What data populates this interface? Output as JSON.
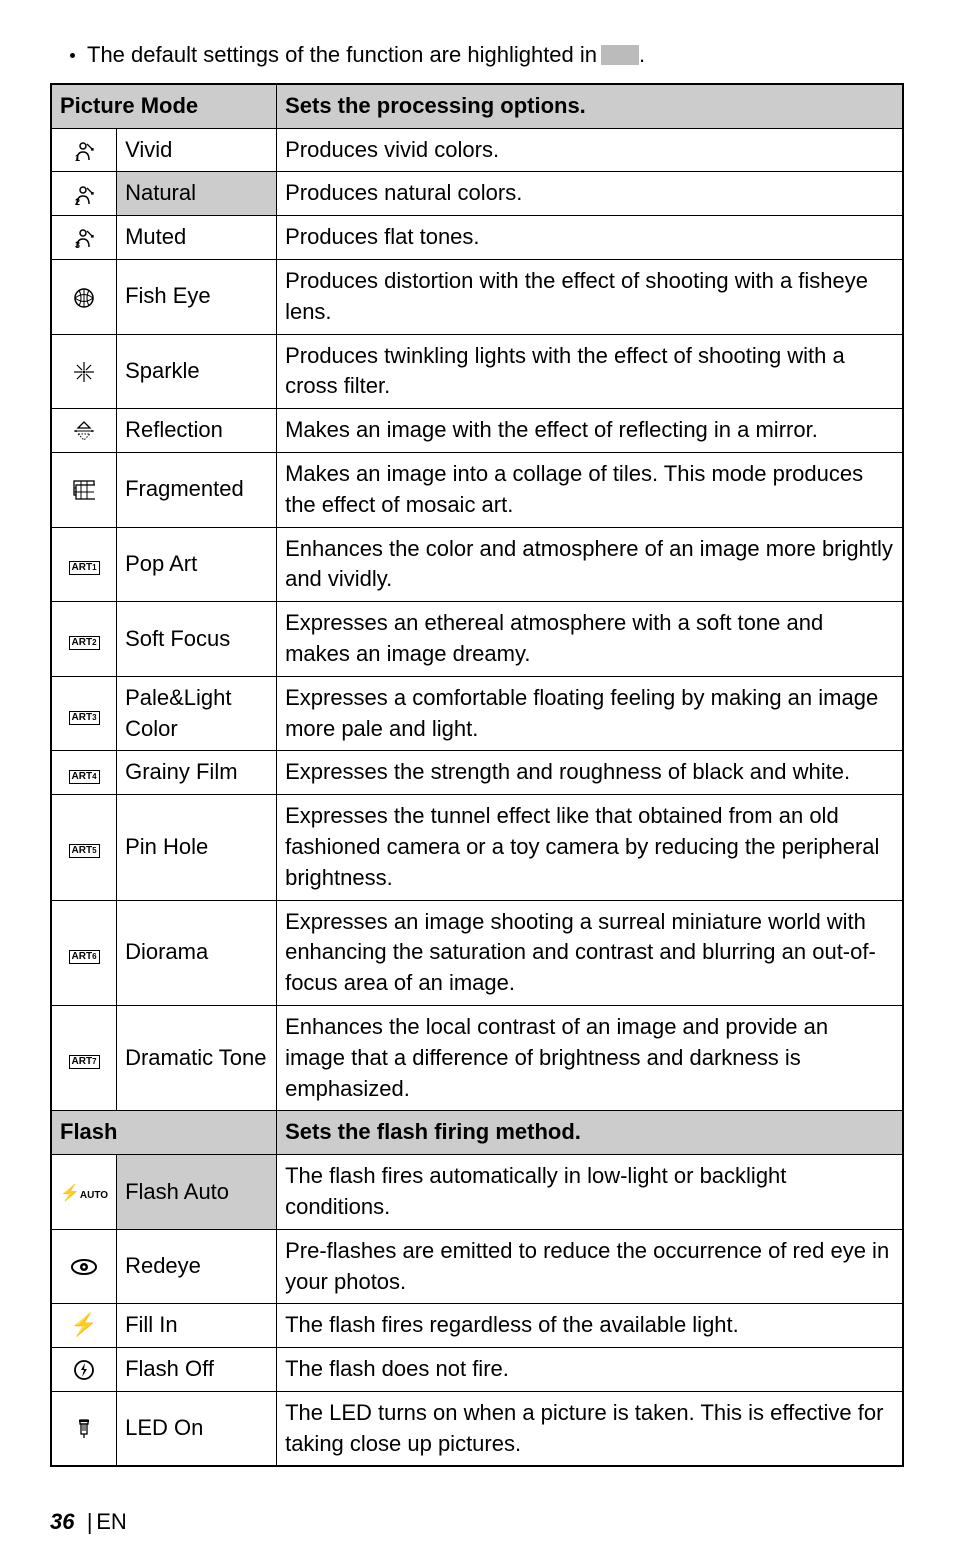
{
  "intro": {
    "text": "The default settings of the function are highlighted in",
    "suffix": "."
  },
  "sections": [
    {
      "header": {
        "col1": "Picture Mode",
        "col2": "Sets the processing options."
      },
      "rows": [
        {
          "icon_svg": "person1",
          "name": "Vivid",
          "desc": "Produces vivid colors.",
          "highlight": false
        },
        {
          "icon_svg": "person2",
          "name": "Natural",
          "desc": "Produces natural colors.",
          "highlight": true
        },
        {
          "icon_svg": "person3",
          "name": "Muted",
          "desc": "Produces flat tones.",
          "highlight": false
        },
        {
          "icon_svg": "fisheye",
          "name": "Fish Eye",
          "desc": "Produces distortion with the effect of shooting with a fisheye lens.",
          "highlight": false
        },
        {
          "icon_svg": "sparkle",
          "name": "Sparkle",
          "desc": "Produces twinkling lights with the effect of shooting with a cross filter.",
          "highlight": false
        },
        {
          "icon_svg": "reflection",
          "name": "Reflection",
          "desc": "Makes an image with the effect of reflecting in a mirror.",
          "highlight": false
        },
        {
          "icon_svg": "fragmented",
          "name": "Fragmented",
          "desc": "Makes an image into a collage of tiles. This mode produces the effect of mosaic art.",
          "highlight": false
        },
        {
          "icon_svg": "art1",
          "name": "Pop Art",
          "desc": "Enhances the color and atmosphere of an image more brightly and vividly.",
          "highlight": false
        },
        {
          "icon_svg": "art2",
          "name": "Soft Focus",
          "desc": "Expresses an ethereal atmosphere with a soft tone and makes an image dreamy.",
          "highlight": false
        },
        {
          "icon_svg": "art3",
          "name": "Pale&Light Color",
          "desc": "Expresses a comfortable floating feeling by making an image more pale and light.",
          "highlight": false
        },
        {
          "icon_svg": "art4",
          "name": "Grainy Film",
          "desc": "Expresses the strength and roughness of black and white.",
          "highlight": false
        },
        {
          "icon_svg": "art5",
          "name": "Pin Hole",
          "desc": "Expresses the tunnel effect like that obtained from an old fashioned camera or a toy camera by reducing the peripheral brightness.",
          "highlight": false
        },
        {
          "icon_svg": "art6",
          "name": "Diorama",
          "desc": "Expresses an image shooting a surreal miniature world with enhancing the saturation and contrast and blurring an out-of-focus area of an image.",
          "highlight": false
        },
        {
          "icon_svg": "art7",
          "name": "Dramatic Tone",
          "desc": "Enhances the local contrast of an image and provide an image that a difference of brightness and darkness is emphasized.",
          "highlight": false
        }
      ]
    },
    {
      "header": {
        "col1": "Flash",
        "col2": "Sets the flash firing method."
      },
      "rows": [
        {
          "icon_svg": "flashauto",
          "name": "Flash Auto",
          "desc": "The flash fires automatically in low-light or backlight conditions.",
          "highlight": true
        },
        {
          "icon_svg": "redeye",
          "name": "Redeye",
          "desc": "Pre-flashes are emitted to reduce the occurrence of red eye in your photos.",
          "highlight": false
        },
        {
          "icon_svg": "fillin",
          "name": "Fill In",
          "desc": "The flash fires regardless of the available light.",
          "highlight": false
        },
        {
          "icon_svg": "flashoff",
          "name": "Flash Off",
          "desc": "The flash does not fire.",
          "highlight": false
        },
        {
          "icon_svg": "ledon",
          "name": "LED On",
          "desc": "The LED turns on when a picture is taken. This is effective for taking close up pictures.",
          "highlight": false
        }
      ]
    }
  ],
  "footer": {
    "page": "36",
    "lang": "EN"
  }
}
